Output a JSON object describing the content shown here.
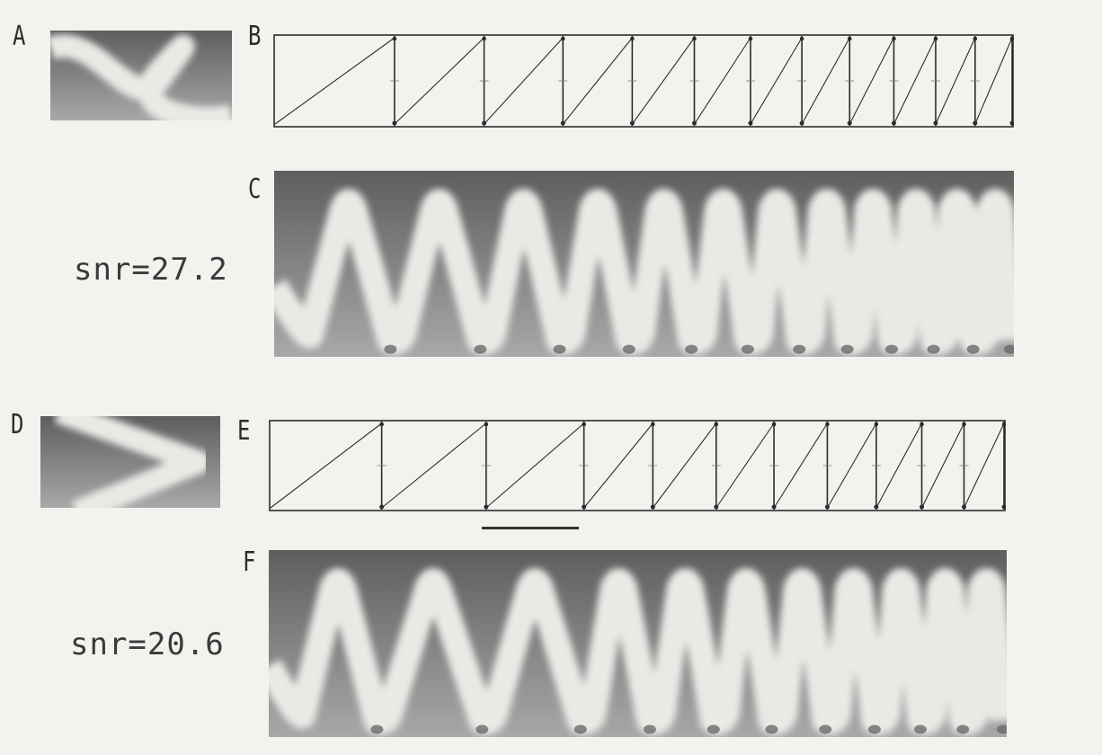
{
  "panels": {
    "a": {
      "letter": "A"
    },
    "b": {
      "letter": "B"
    },
    "c": {
      "letter": "C",
      "snr_label": "snr=27.2"
    },
    "d": {
      "letter": "D"
    },
    "e": {
      "letter": "E"
    },
    "f": {
      "letter": "F",
      "snr_label": "snr=20.6"
    }
  },
  "colors": {
    "background": "#f3f2ef",
    "band_light": "#e9e9e6",
    "image_dark": "#5e5e5e",
    "image_light": "#a8a8a8",
    "ink": "#2c2c2c"
  },
  "upper_row": {
    "description_free_params": {
      "sweeps": 12,
      "sweep_lengths_relative": [
        1.0,
        0.75,
        0.66,
        0.58,
        0.52,
        0.47,
        0.43,
        0.4,
        0.37,
        0.35,
        0.33,
        0.31
      ]
    }
  },
  "lower_row": {
    "description_free_params": {
      "sweeps": 11,
      "sweep_lengths_relative": [
        1.0,
        0.94,
        0.88,
        0.62,
        0.57,
        0.52,
        0.48,
        0.44,
        0.41,
        0.38,
        0.36
      ]
    }
  }
}
